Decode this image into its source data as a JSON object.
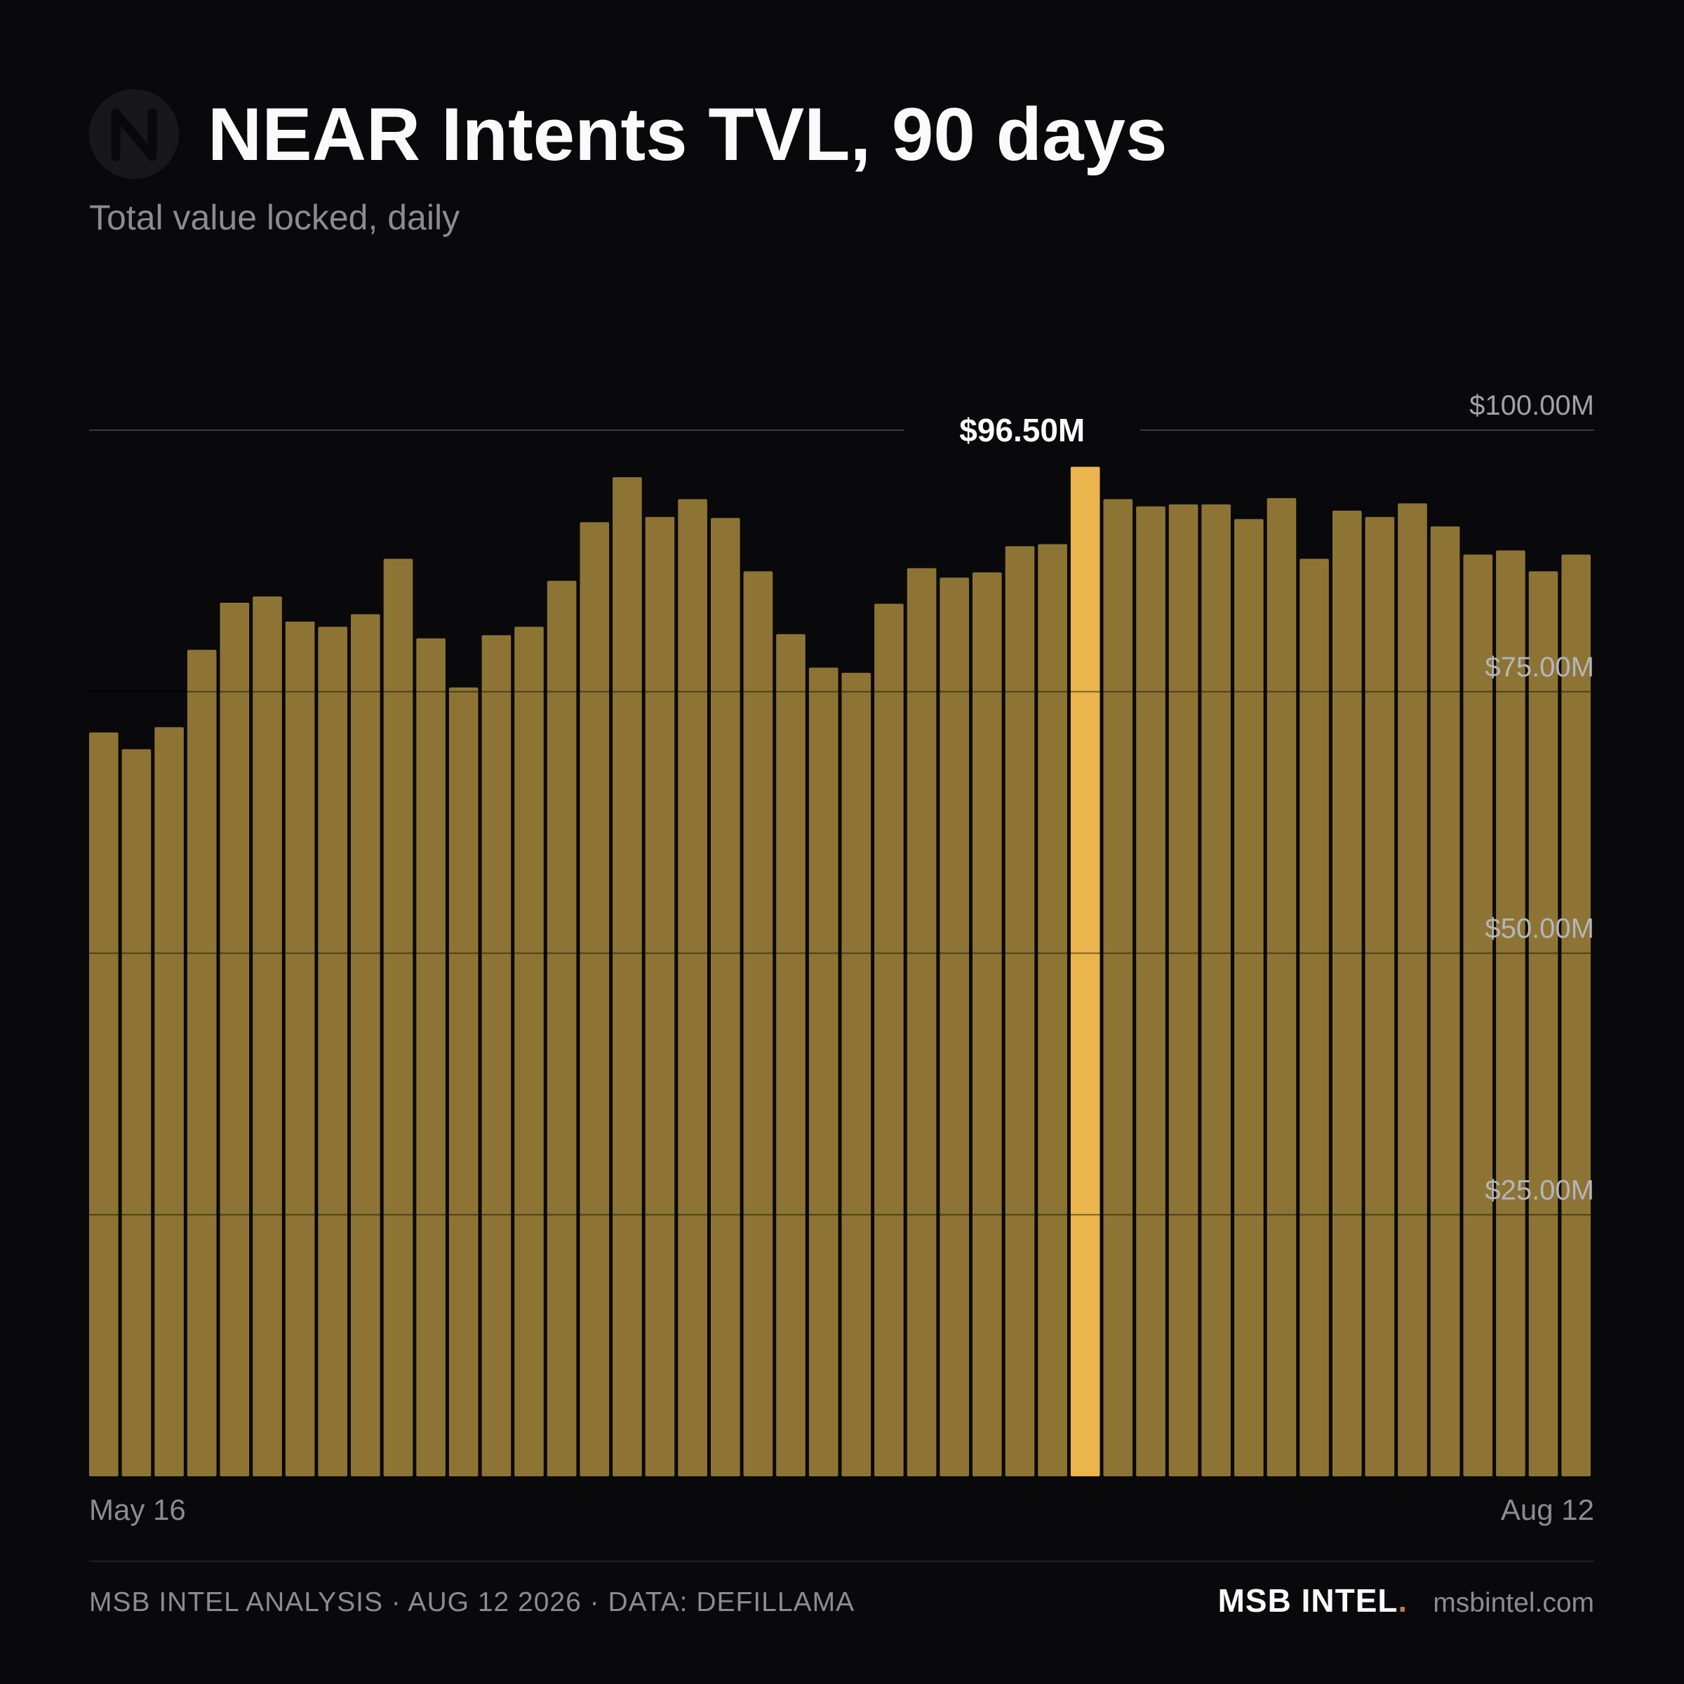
{
  "header": {
    "title": "NEAR Intents TVL, 90 days",
    "subtitle": "Total value locked, daily",
    "logo_icon": "near-logo-icon"
  },
  "colors": {
    "background": "#09090b",
    "bar": "#8e7434",
    "bar_highlight": "#e9b54c",
    "grid": "#3a3a40",
    "text_primary": "#fafafa",
    "text_muted": "#8b8b92",
    "brand_dot": "#c0784a"
  },
  "chart_data": {
    "type": "bar",
    "title": "NEAR Intents TVL, 90 days",
    "subtitle": "Total value locked, daily",
    "xlabel": "",
    "ylabel": "",
    "x_tick_labels": [
      "May 16",
      "Aug 12"
    ],
    "y_tick_labels": [
      "$25.00M",
      "$50.00M",
      "$75.00M",
      "$100.00M"
    ],
    "y_ticks": [
      25,
      50,
      75,
      100
    ],
    "ylim": [
      0,
      100
    ],
    "unit": "$M",
    "grid": true,
    "legend": "none",
    "highlight_index": 30,
    "highlight_label": "$96.50M",
    "values": [
      71.1,
      69.5,
      71.6,
      79.0,
      83.5,
      84.1,
      81.7,
      81.2,
      82.4,
      87.7,
      80.1,
      75.4,
      80.4,
      81.2,
      85.6,
      91.2,
      95.5,
      91.7,
      93.4,
      91.6,
      86.5,
      80.5,
      77.3,
      76.8,
      83.4,
      86.8,
      85.9,
      86.4,
      88.9,
      89.1,
      96.5,
      93.4,
      92.7,
      92.9,
      92.9,
      91.5,
      93.5,
      87.7,
      92.3,
      91.7,
      93.0,
      90.8,
      88.1,
      88.5,
      86.5,
      88.1
    ]
  },
  "footer": {
    "credit": "MSB INTEL ANALYSIS · AUG 12 2026 · DATA: DEFILLAMA",
    "brand": "MSB INTEL",
    "brand_dot": ".",
    "url": "msbintel.com"
  }
}
